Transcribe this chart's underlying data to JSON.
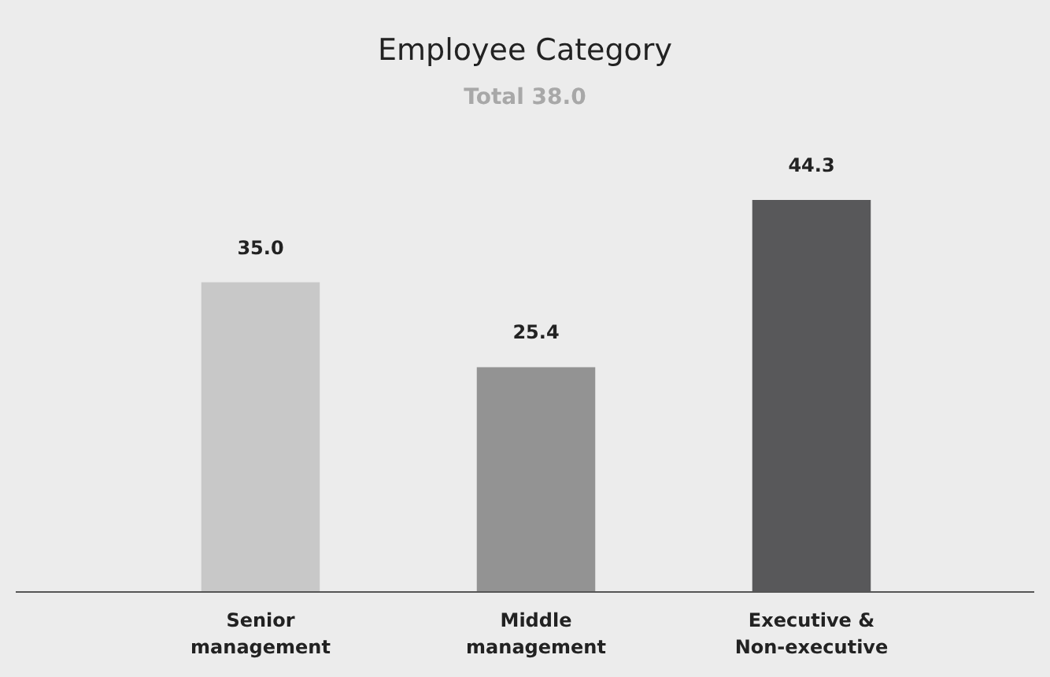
{
  "chart_data": {
    "type": "bar",
    "title": "Employee Category",
    "subtitle": "Total 38.0",
    "categories": [
      "Senior management",
      "Middle management",
      "Executive & Non-executive"
    ],
    "values": [
      35.0,
      25.4,
      44.3
    ],
    "value_labels": [
      "35.0",
      "25.4",
      "44.3"
    ],
    "colors": [
      "#c8c8c8",
      "#939393",
      "#58585a"
    ]
  }
}
